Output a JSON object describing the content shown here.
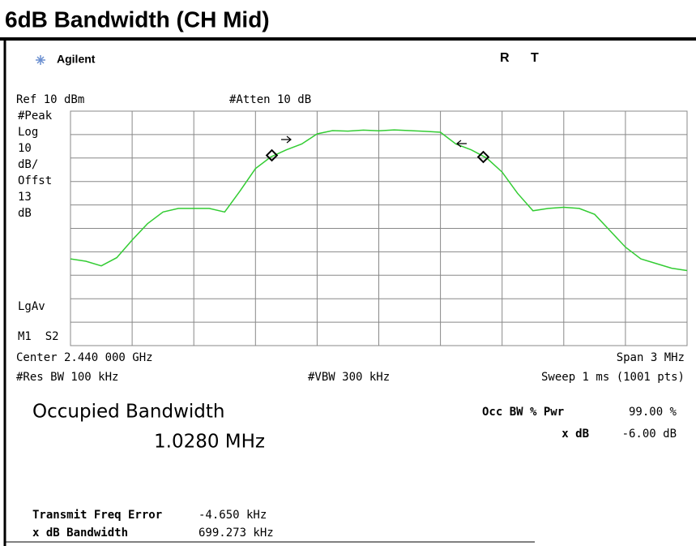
{
  "title": "6dB Bandwidth (CH Mid)",
  "header": {
    "brand": "Agilent",
    "r": "R",
    "t": "T"
  },
  "settings": {
    "ref": "Ref 10 dBm",
    "atten": "#Atten 10 dB",
    "scale_labels": [
      "#Peak",
      "Log",
      "10",
      "dB/",
      "Offst",
      "13",
      "dB"
    ],
    "avg": "LgAv",
    "markers": "M1  S2",
    "center": "Center 2.440 000 GHz",
    "span": "Span 3 MHz",
    "rbw": "#Res BW 100 kHz",
    "vbw": "#VBW 300 kHz",
    "sweep": "Sweep 1 ms (1001 pts)"
  },
  "chart_data": {
    "type": "line",
    "color": "#33cc33",
    "ylim": [
      -90,
      10
    ],
    "values": [
      -53,
      -54,
      -56,
      -52.5,
      -45,
      -38,
      -33,
      -31.5,
      -31.5,
      -31.5,
      -33,
      -24,
      -14.5,
      -9.5,
      -6.5,
      -4,
      0.3,
      1.7,
      1.5,
      1.9,
      1.6,
      2.0,
      1.7,
      1.4,
      1,
      -4,
      -6.5,
      -10,
      -16,
      -25,
      -32.5,
      -31.5,
      -31,
      -31.5,
      -34,
      -41,
      -48,
      -53,
      -55,
      -57,
      -58
    ]
  },
  "results": {
    "occ_label": "Occupied Bandwidth",
    "occ_value": "1.0280 MHz",
    "pwr_label": "Occ BW % Pwr",
    "pwr_value": "99.00 %",
    "xdb_label": "x dB",
    "xdb_value": "-6.00 dB",
    "tfe_label": "Transmit Freq Error",
    "tfe_value": "-4.650 kHz",
    "xbw_label": "x dB Bandwidth",
    "xbw_value": "699.273 kHz"
  }
}
